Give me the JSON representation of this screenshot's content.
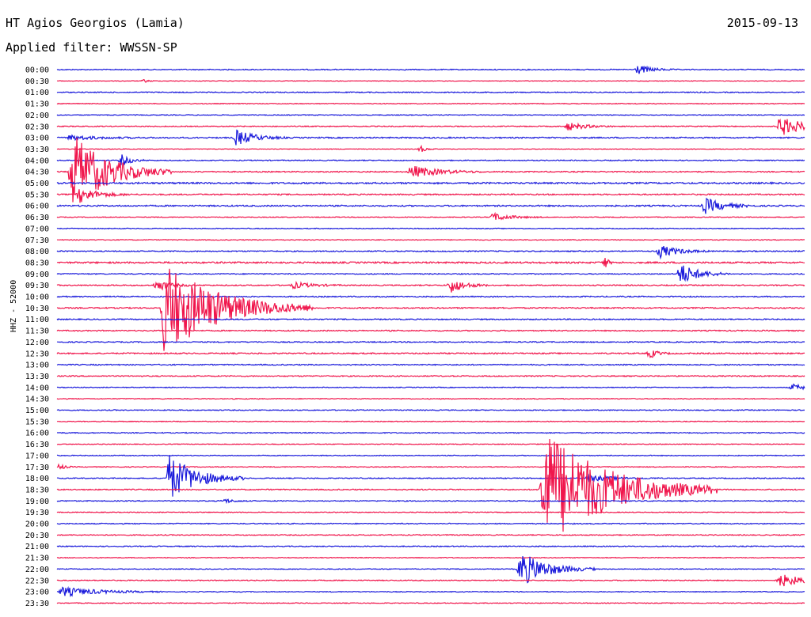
{
  "header": {
    "station": "HT Agios Georgios (Lamia)",
    "date": "2015-09-13",
    "filter": "Applied filter: WWSSN-SP"
  },
  "side_label": "HHZ - 52000",
  "colors": {
    "even_trace": "#1a1adb",
    "odd_trace": "#f0164c",
    "background": "#ffffff"
  },
  "chart_data": {
    "type": "line",
    "title": "HT Agios Georgios (Lamia)",
    "channel": "HHZ - 52000",
    "filter": "WWSSN-SP",
    "rows": [
      "00:00",
      "00:30",
      "01:00",
      "01:30",
      "02:00",
      "02:30",
      "03:00",
      "03:30",
      "04:00",
      "04:30",
      "05:00",
      "05:30",
      "06:00",
      "06:30",
      "07:00",
      "07:30",
      "08:00",
      "08:30",
      "09:00",
      "09:30",
      "10:00",
      "10:30",
      "11:00",
      "11:30",
      "12:00",
      "12:30",
      "13:00",
      "13:30",
      "14:00",
      "14:30",
      "15:00",
      "15:30",
      "16:00",
      "16:30",
      "17:00",
      "17:30",
      "18:00",
      "18:30",
      "19:00",
      "19:30",
      "20:00",
      "20:30",
      "21:00",
      "21:30",
      "22:00",
      "22:30",
      "23:00",
      "23:30"
    ],
    "row_minutes": 30,
    "noise_levels": [
      0.6,
      0.4,
      0.6,
      0.5,
      0.5,
      0.6,
      0.8,
      0.4,
      0.6,
      0.7,
      1.0,
      0.8,
      0.9,
      0.5,
      0.5,
      0.5,
      0.7,
      1.0,
      0.6,
      0.7,
      0.7,
      0.8,
      0.7,
      0.7,
      0.7,
      0.8,
      0.7,
      0.7,
      0.5,
      0.5,
      0.6,
      0.5,
      0.6,
      0.5,
      0.5,
      0.5,
      0.6,
      0.7,
      0.6,
      0.5,
      0.6,
      0.6,
      0.6,
      0.5,
      0.5,
      0.6,
      0.5,
      0.5
    ],
    "events": [
      {
        "row": 0,
        "minute": 23.3,
        "amplitude": 6,
        "duration": 1.5
      },
      {
        "row": 1,
        "minute": 3.5,
        "amplitude": 2,
        "duration": 0.5
      },
      {
        "row": 5,
        "minute": 20.5,
        "amplitude": 5,
        "duration": 2
      },
      {
        "row": 5,
        "minute": 29.0,
        "amplitude": 12,
        "duration": 3
      },
      {
        "row": 6,
        "minute": 0.5,
        "amplitude": 3,
        "duration": 3
      },
      {
        "row": 6,
        "minute": 7.2,
        "amplitude": 10,
        "duration": 2
      },
      {
        "row": 7,
        "minute": 14.6,
        "amplitude": 4,
        "duration": 0.6
      },
      {
        "row": 8,
        "minute": 2.6,
        "amplitude": 7,
        "duration": 1
      },
      {
        "row": 9,
        "minute": 0.6,
        "amplitude": 50,
        "duration": 4
      },
      {
        "row": 9,
        "minute": 14.2,
        "amplitude": 8,
        "duration": 3
      },
      {
        "row": 11,
        "minute": 0.9,
        "amplitude": 10,
        "duration": 2
      },
      {
        "row": 12,
        "minute": 26.0,
        "amplitude": 10,
        "duration": 2
      },
      {
        "row": 13,
        "minute": 17.5,
        "amplitude": 5,
        "duration": 2
      },
      {
        "row": 16,
        "minute": 24.2,
        "amplitude": 8,
        "duration": 2
      },
      {
        "row": 17,
        "minute": 22.0,
        "amplitude": 8,
        "duration": 0.3
      },
      {
        "row": 18,
        "minute": 25.0,
        "amplitude": 14,
        "duration": 2
      },
      {
        "row": 19,
        "minute": 4.0,
        "amplitude": 7,
        "duration": 1.5
      },
      {
        "row": 19,
        "minute": 9.5,
        "amplitude": 4,
        "duration": 2
      },
      {
        "row": 19,
        "minute": 15.8,
        "amplitude": 10,
        "duration": 1.5
      },
      {
        "row": 21,
        "minute": 4.3,
        "amplitude": 60,
        "duration": 6
      },
      {
        "row": 25,
        "minute": 23.8,
        "amplitude": 6,
        "duration": 0.8
      },
      {
        "row": 28,
        "minute": 29.5,
        "amplitude": 4,
        "duration": 2
      },
      {
        "row": 35,
        "minute": 0.1,
        "amplitude": 4,
        "duration": 0.6
      },
      {
        "row": 36,
        "minute": 4.5,
        "amplitude": 30,
        "duration": 3
      },
      {
        "row": 36,
        "minute": 21.3,
        "amplitude": 4,
        "duration": 3
      },
      {
        "row": 38,
        "minute": 6.7,
        "amplitude": 3,
        "duration": 1
      },
      {
        "row": 37,
        "minute": 19.5,
        "amplitude": 80,
        "duration": 7
      },
      {
        "row": 44,
        "minute": 18.6,
        "amplitude": 22,
        "duration": 3
      },
      {
        "row": 45,
        "minute": 29.0,
        "amplitude": 8,
        "duration": 3
      },
      {
        "row": 46,
        "minute": 0.2,
        "amplitude": 6,
        "duration": 4
      }
    ]
  }
}
